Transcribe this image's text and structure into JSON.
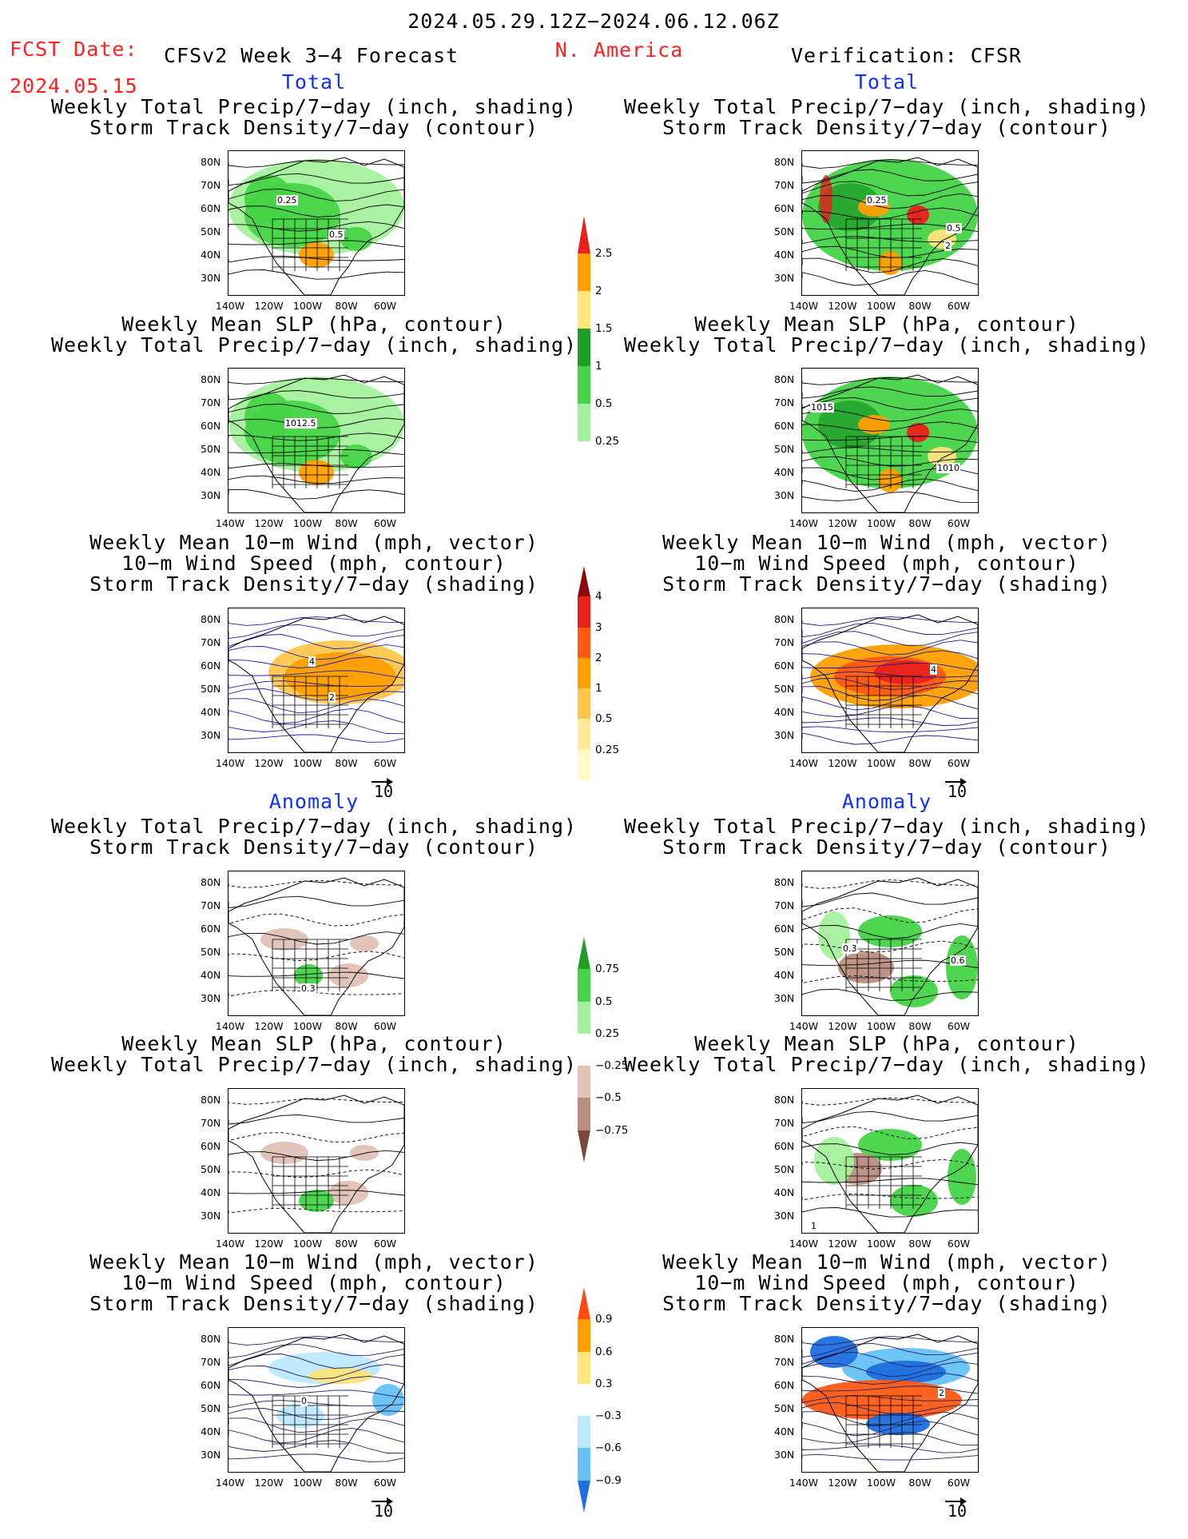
{
  "header": {
    "period": "2024.05.29.12Z−2024.06.12.06Z",
    "fcst_label": "FCST Date:",
    "fcst_date": "2024.05.15",
    "model": "CFSv2 Week 3−4 Forecast",
    "region": "N. America",
    "verification": "Verification: CFSR"
  },
  "sections": {
    "total": "Total",
    "anomaly": "Anomaly"
  },
  "panel_titles": {
    "precip_track": [
      "Weekly Total Precip/7−day (inch, shading)",
      "Storm Track Density/7−day (contour)"
    ],
    "slp_precip": [
      "Weekly Mean SLP (hPa, contour)",
      "Weekly Total Precip/7−day (inch, shading)"
    ],
    "wind_track": [
      "Weekly Mean 10−m Wind (mph, vector)",
      "10−m Wind Speed (mph, contour)",
      "Storm Track Density/7−day (shading)"
    ]
  },
  "axes": {
    "lat_ticks": [
      "80N",
      "70N",
      "60N",
      "50N",
      "40N",
      "30N"
    ],
    "lon_ticks": [
      "140W",
      "120W",
      "100W",
      "80W",
      "60W"
    ]
  },
  "vector_reference": "10",
  "colorbars": {
    "precip_total": {
      "labels": [
        "2.5",
        "2",
        "1.5",
        "1",
        "0.5",
        "0.25"
      ],
      "colors": [
        "#e8211b",
        "#ff9f00",
        "#ffe57a",
        "#1e9e27",
        "#46d447",
        "#a4f19d"
      ]
    },
    "track_total": {
      "labels": [
        "4",
        "3",
        "2",
        "1",
        "0.5",
        "0.25"
      ],
      "colors": [
        "#8b0a0a",
        "#e8211b",
        "#ff5a12",
        "#ff9f00",
        "#ffc64d",
        "#ffe99a",
        "#fffac8"
      ]
    },
    "precip_anom": {
      "labels": [
        "0.75",
        "0.5",
        "0.25",
        "−0.25",
        "−0.5",
        "−0.75"
      ],
      "colors": [
        "#1e9e27",
        "#46d447",
        "#a4f19d",
        "#ffffff",
        "#e2c1b6",
        "#b98e7f",
        "#7b4a3a"
      ]
    },
    "track_anom": {
      "labels": [
        "0.9",
        "0.6",
        "0.3",
        "−0.3",
        "−0.6",
        "−0.9"
      ],
      "colors": [
        "#ff4a12",
        "#ff9f00",
        "#ffe57a",
        "#ffffff",
        "#bde9ff",
        "#67c1f5",
        "#1e6fe0"
      ]
    }
  },
  "contour_labels": {
    "fc_total_precip": [
      "0.25",
      "0.5"
    ],
    "vr_total_precip": [
      "0.25",
      "0.5",
      "2"
    ],
    "fc_total_slp": [
      "1012.5"
    ],
    "vr_total_slp": [
      "1015",
      "1010"
    ],
    "fc_total_wind": [
      "4",
      "2"
    ],
    "vr_total_wind": [
      "4"
    ],
    "fc_anom_precip": [
      "0.3"
    ],
    "vr_anom_precip": [
      "0.3",
      "0.6"
    ],
    "vr_anom_slp": [
      "1"
    ],
    "fc_anom_wind": [
      "0"
    ],
    "vr_anom_wind": [
      "2"
    ]
  }
}
